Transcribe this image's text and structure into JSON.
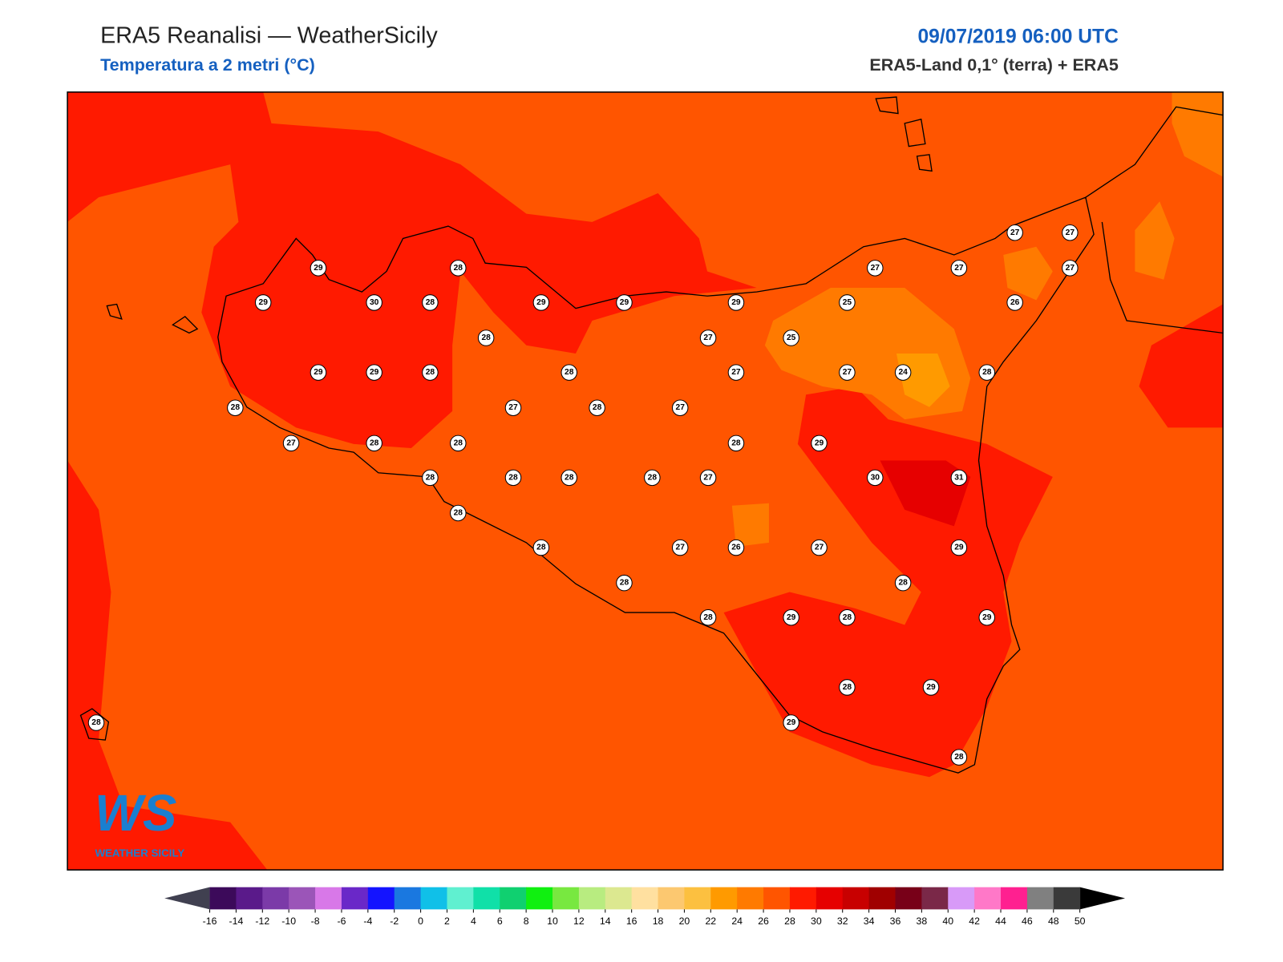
{
  "header": {
    "title": "ERA5 Reanalisi — WeatherSicily",
    "subtitle": "Temperatura a 2 metri (°C)",
    "date": "09/07/2019 06:00 UTC",
    "source": "ERA5-Land 0,1° (terra) + ERA5"
  },
  "stations": [
    29,
    28,
    29,
    30,
    28,
    29,
    29,
    29,
    28,
    27,
    25,
    25,
    27,
    27,
    27,
    27,
    27,
    26,
    29,
    29,
    28,
    28,
    27,
    27,
    24,
    28,
    28,
    27,
    28,
    27,
    27,
    28,
    28,
    28,
    29,
    28,
    28,
    28,
    28,
    27,
    30,
    31,
    28,
    28,
    27,
    26,
    27,
    29,
    28,
    28,
    28,
    29,
    28,
    29,
    28,
    29,
    29,
    28,
    28
  ],
  "colorbar": {
    "ticks": [
      -16,
      -14,
      -12,
      -10,
      -8,
      -6,
      -4,
      -2,
      0,
      2,
      4,
      6,
      8,
      10,
      12,
      14,
      16,
      18,
      20,
      22,
      24,
      26,
      28,
      30,
      32,
      34,
      36,
      38,
      40,
      42,
      44,
      46,
      48,
      50
    ],
    "colors": [
      "#3c0a5a",
      "#5a1a8a",
      "#7b3aa8",
      "#9b55b8",
      "#d878e8",
      "#6a28c8",
      "#1414ff",
      "#1a78e0",
      "#10c0e8",
      "#60f0d0",
      "#10e0a8",
      "#10d070",
      "#10f010",
      "#78e840",
      "#b8ec80",
      "#dce890",
      "#ffe0a0",
      "#fcc870",
      "#fcc040",
      "#ff9a00",
      "#ff7a00",
      "#ff5500",
      "#ff1a00",
      "#e60000",
      "#c80000",
      "#a00000",
      "#780018",
      "#7a2848",
      "#d89af8",
      "#ff78c8",
      "#ff2090",
      "#808080",
      "#3a3a3a"
    ],
    "under_color": "#404050",
    "over_color": "#000000"
  },
  "logo": {
    "mark": "WS",
    "text": "WEATHER SICILY"
  }
}
